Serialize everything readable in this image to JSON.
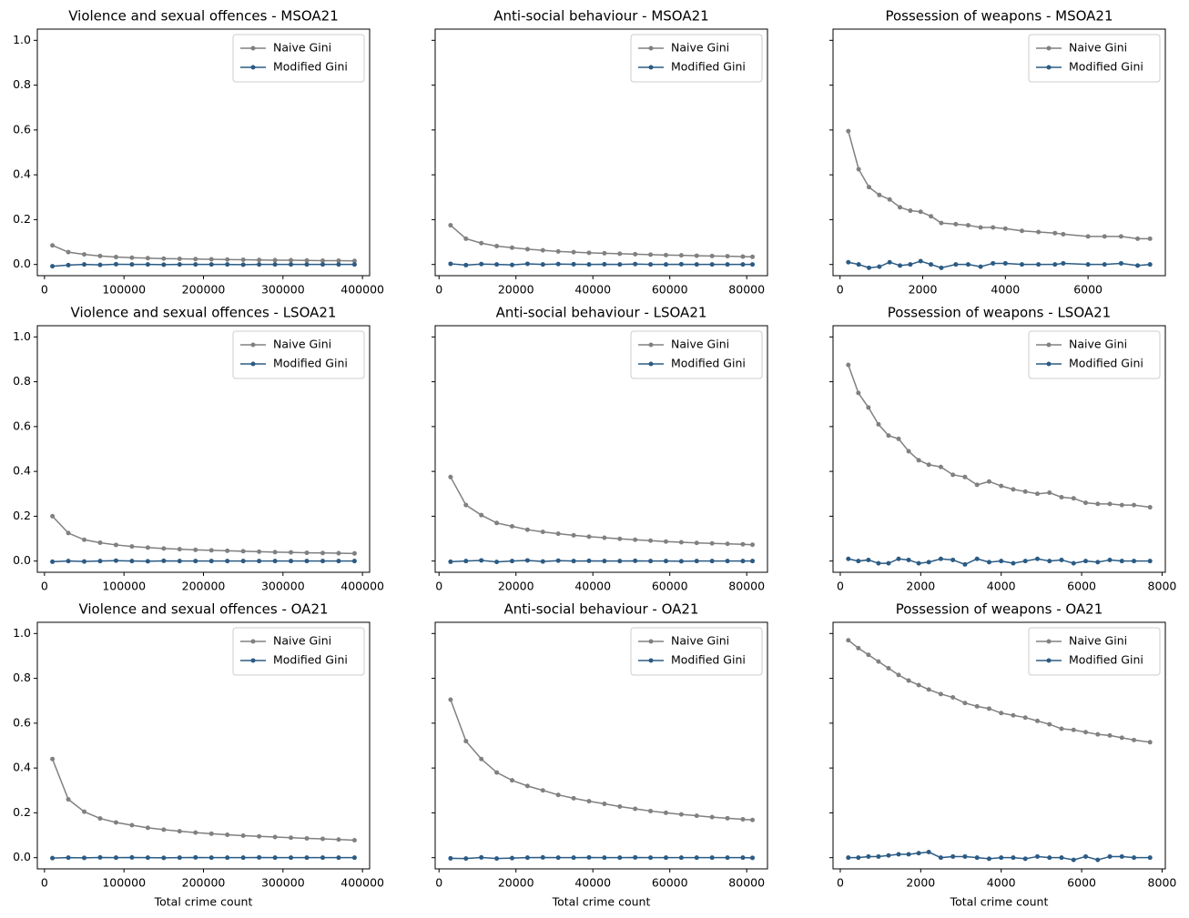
{
  "chart_data": [
    {
      "type": "line",
      "title": "Violence and sexual offences - MSOA21",
      "legend": "upper right",
      "x": [
        10000,
        30000,
        50000,
        70000,
        90000,
        110000,
        130000,
        150000,
        170000,
        190000,
        210000,
        230000,
        250000,
        270000,
        290000,
        310000,
        330000,
        350000,
        370000,
        390000
      ],
      "series": [
        {
          "name": "Naive Gini",
          "color": "#808080",
          "values": [
            0.085,
            0.055,
            0.045,
            0.038,
            0.033,
            0.03,
            0.028,
            0.026,
            0.025,
            0.024,
            0.023,
            0.022,
            0.021,
            0.02,
            0.019,
            0.019,
            0.018,
            0.017,
            0.017,
            0.016
          ]
        },
        {
          "name": "Modified Gini",
          "color": "#2b5b84",
          "values": [
            -0.008,
            -0.003,
            0,
            -0.002,
            0.001,
            0,
            0,
            -0.001,
            0,
            0,
            0,
            0,
            -0.001,
            0,
            0,
            0,
            0,
            0,
            0,
            0
          ]
        }
      ],
      "xlim": [
        -9000,
        409000
      ],
      "xticks": [
        0,
        100000,
        200000,
        300000,
        400000
      ],
      "ylim": [
        -0.05,
        1.05
      ],
      "yticks": [
        {
          "value": 0,
          "label": "0.0"
        },
        0.2,
        0.4,
        0.6,
        0.8,
        {
          "value": 1,
          "label": "1.0"
        }
      ]
    },
    {
      "type": "line",
      "title": "Anti-social behaviour - MSOA21",
      "legend": "upper right",
      "x": [
        3000,
        7000,
        11000,
        15000,
        19000,
        23000,
        27000,
        31000,
        35000,
        39000,
        43000,
        47000,
        51000,
        55000,
        59000,
        63000,
        67000,
        71000,
        75000,
        79000,
        81500
      ],
      "series": [
        {
          "name": "Naive Gini",
          "color": "#808080",
          "values": [
            0.175,
            0.115,
            0.095,
            0.082,
            0.075,
            0.068,
            0.063,
            0.058,
            0.055,
            0.052,
            0.05,
            0.048,
            0.046,
            0.044,
            0.042,
            0.041,
            0.039,
            0.038,
            0.037,
            0.035,
            0.034
          ]
        },
        {
          "name": "Modified Gini",
          "color": "#2b5b84",
          "values": [
            0.003,
            -0.003,
            0.002,
            0,
            -0.002,
            0.003,
            0,
            0.002,
            0.001,
            0,
            0.001,
            0,
            0.002,
            0,
            0,
            0.001,
            0,
            0,
            0,
            0,
            0
          ]
        }
      ],
      "xlim": [
        -1000,
        85400
      ],
      "xticks": [
        0,
        20000,
        40000,
        60000,
        80000
      ],
      "ylim": [
        -0.05,
        1.05
      ],
      "yticks": [
        0,
        0.2,
        0.4,
        0.6,
        0.8,
        1
      ]
    },
    {
      "type": "line",
      "title": "Possession of weapons - MSOA21",
      "legend": "upper right",
      "x": [
        200,
        450,
        700,
        950,
        1200,
        1450,
        1700,
        1950,
        2200,
        2450,
        2800,
        3100,
        3400,
        3700,
        4000,
        4400,
        4800,
        5200,
        5400,
        6000,
        6400,
        6800,
        7200,
        7500
      ],
      "series": [
        {
          "name": "Naive Gini",
          "color": "#808080",
          "values": [
            0.595,
            0.425,
            0.345,
            0.31,
            0.29,
            0.255,
            0.24,
            0.235,
            0.215,
            0.185,
            0.18,
            0.175,
            0.165,
            0.165,
            0.16,
            0.15,
            0.145,
            0.14,
            0.135,
            0.125,
            0.125,
            0.125,
            0.115,
            0.115
          ]
        },
        {
          "name": "Modified Gini",
          "color": "#2b5b84",
          "values": [
            0.01,
            0,
            -0.015,
            -0.01,
            0.01,
            -0.005,
            0,
            0.015,
            0,
            -0.015,
            0,
            0,
            -0.01,
            0.005,
            0.005,
            0,
            0,
            0,
            0.005,
            0,
            0,
            0.005,
            -0.005,
            0
          ]
        }
      ],
      "xlim": [
        -170,
        7870
      ],
      "xticks": [
        0,
        2000,
        4000,
        6000
      ],
      "ylim": [
        -0.05,
        1.05
      ],
      "yticks": [
        0,
        0.2,
        0.4,
        0.6,
        0.8,
        1
      ]
    },
    {
      "type": "line",
      "title": "Violence and sexual offences - LSOA21",
      "legend": "upper right",
      "x": [
        10000,
        30000,
        50000,
        70000,
        90000,
        110000,
        130000,
        150000,
        170000,
        190000,
        210000,
        230000,
        250000,
        270000,
        290000,
        310000,
        330000,
        350000,
        370000,
        390000
      ],
      "series": [
        {
          "name": "Naive Gini",
          "color": "#808080",
          "values": [
            0.2,
            0.125,
            0.095,
            0.082,
            0.072,
            0.065,
            0.06,
            0.056,
            0.053,
            0.05,
            0.048,
            0.046,
            0.044,
            0.042,
            0.04,
            0.039,
            0.037,
            0.036,
            0.035,
            0.034
          ]
        },
        {
          "name": "Modified Gini",
          "color": "#2b5b84",
          "values": [
            -0.003,
            0,
            -0.002,
            0,
            0.002,
            0,
            -0.001,
            0.001,
            0,
            0,
            0,
            0,
            0,
            0,
            0,
            0,
            0,
            0,
            0,
            0
          ]
        }
      ],
      "xlim": [
        -9000,
        409000
      ],
      "xticks": [
        0,
        100000,
        200000,
        300000,
        400000
      ],
      "ylim": [
        -0.05,
        1.05
      ],
      "yticks": [
        {
          "value": 0,
          "label": "0.0"
        },
        0.2,
        0.4,
        0.6,
        0.8,
        {
          "value": 1,
          "label": "1.0"
        }
      ]
    },
    {
      "type": "line",
      "title": "Anti-social behaviour - LSOA21",
      "legend": "upper right",
      "x": [
        3000,
        7000,
        11000,
        15000,
        19000,
        23000,
        27000,
        31000,
        35000,
        39000,
        43000,
        47000,
        51000,
        55000,
        59000,
        63000,
        67000,
        71000,
        75000,
        79000,
        81500
      ],
      "series": [
        {
          "name": "Naive Gini",
          "color": "#808080",
          "values": [
            0.375,
            0.25,
            0.205,
            0.17,
            0.155,
            0.14,
            0.13,
            0.122,
            0.115,
            0.109,
            0.104,
            0.099,
            0.095,
            0.091,
            0.087,
            0.084,
            0.081,
            0.079,
            0.077,
            0.075,
            0.073
          ]
        },
        {
          "name": "Modified Gini",
          "color": "#2b5b84",
          "values": [
            -0.003,
            0,
            0.003,
            -0.004,
            0,
            0.003,
            -0.002,
            0.002,
            0,
            0.001,
            0,
            0,
            0.001,
            0,
            0,
            -0.001,
            0,
            0,
            0,
            0,
            0
          ]
        }
      ],
      "xlim": [
        -1000,
        85400
      ],
      "xticks": [
        0,
        20000,
        40000,
        60000,
        80000
      ],
      "ylim": [
        -0.05,
        1.05
      ],
      "yticks": [
        0,
        0.2,
        0.4,
        0.6,
        0.8,
        1
      ]
    },
    {
      "type": "line",
      "title": "Possession of weapons - LSOA21",
      "legend": "upper right",
      "x": [
        200,
        450,
        700,
        950,
        1200,
        1450,
        1700,
        1950,
        2200,
        2500,
        2800,
        3100,
        3400,
        3700,
        4000,
        4300,
        4600,
        4900,
        5200,
        5500,
        5800,
        6100,
        6400,
        6700,
        7000,
        7300,
        7700
      ],
      "series": [
        {
          "name": "Naive Gini",
          "color": "#808080",
          "values": [
            0.875,
            0.75,
            0.685,
            0.61,
            0.56,
            0.545,
            0.49,
            0.45,
            0.43,
            0.42,
            0.385,
            0.375,
            0.34,
            0.355,
            0.335,
            0.32,
            0.31,
            0.3,
            0.305,
            0.285,
            0.28,
            0.26,
            0.255,
            0.255,
            0.25,
            0.25,
            0.24
          ]
        },
        {
          "name": "Modified Gini",
          "color": "#2b5b84",
          "values": [
            0.01,
            0,
            0.005,
            -0.01,
            -0.01,
            0.01,
            0.005,
            -0.01,
            -0.005,
            0.01,
            0.005,
            -0.015,
            0.01,
            -0.005,
            0,
            -0.01,
            0,
            0.01,
            0,
            0.005,
            -0.01,
            0,
            -0.005,
            0.005,
            0,
            0,
            0
          ]
        }
      ],
      "xlim": [
        -180,
        8080
      ],
      "xticks": [
        0,
        2000,
        4000,
        6000,
        8000
      ],
      "ylim": [
        -0.05,
        1.05
      ],
      "yticks": [
        0,
        0.2,
        0.4,
        0.6,
        0.8,
        1
      ]
    },
    {
      "type": "line",
      "title": "Violence and sexual offences - OA21",
      "legend": "upper right",
      "xlabel": "Total crime count",
      "x": [
        10000,
        30000,
        50000,
        70000,
        90000,
        110000,
        130000,
        150000,
        170000,
        190000,
        210000,
        230000,
        250000,
        270000,
        290000,
        310000,
        330000,
        350000,
        370000,
        390000
      ],
      "series": [
        {
          "name": "Naive Gini",
          "color": "#808080",
          "values": [
            0.44,
            0.26,
            0.205,
            0.175,
            0.157,
            0.145,
            0.133,
            0.125,
            0.118,
            0.112,
            0.107,
            0.102,
            0.098,
            0.095,
            0.092,
            0.089,
            0.086,
            0.084,
            0.081,
            0.078
          ]
        },
        {
          "name": "Modified Gini",
          "color": "#2b5b84",
          "values": [
            -0.002,
            0,
            -0.001,
            0.001,
            0,
            0.001,
            0,
            -0.001,
            0,
            0.001,
            0,
            0,
            0,
            0.001,
            0,
            0,
            0,
            0,
            0,
            0
          ]
        }
      ],
      "xlim": [
        -9000,
        409000
      ],
      "xticks": [
        0,
        100000,
        200000,
        300000,
        400000
      ],
      "ylim": [
        -0.05,
        1.05
      ],
      "yticks": [
        {
          "value": 0,
          "label": "0.0"
        },
        0.2,
        0.4,
        0.6,
        0.8,
        {
          "value": 1,
          "label": "1.0"
        }
      ]
    },
    {
      "type": "line",
      "title": "Anti-social behaviour - OA21",
      "legend": "upper right",
      "xlabel": "Total crime count",
      "x": [
        3000,
        7000,
        11000,
        15000,
        19000,
        23000,
        27000,
        31000,
        35000,
        39000,
        43000,
        47000,
        51000,
        55000,
        59000,
        63000,
        67000,
        71000,
        75000,
        79000,
        81500
      ],
      "series": [
        {
          "name": "Naive Gini",
          "color": "#808080",
          "values": [
            0.705,
            0.52,
            0.44,
            0.38,
            0.345,
            0.32,
            0.3,
            0.28,
            0.265,
            0.252,
            0.24,
            0.228,
            0.218,
            0.208,
            0.2,
            0.193,
            0.187,
            0.181,
            0.176,
            0.171,
            0.168
          ]
        },
        {
          "name": "Modified Gini",
          "color": "#2b5b84",
          "values": [
            -0.003,
            -0.004,
            0.001,
            -0.004,
            -0.002,
            0,
            0.001,
            0,
            0,
            0.001,
            0,
            0,
            0.001,
            0,
            0,
            0,
            0,
            0,
            0,
            0,
            -0.001
          ]
        }
      ],
      "xlim": [
        -1000,
        85400
      ],
      "xticks": [
        0,
        20000,
        40000,
        60000,
        80000
      ],
      "ylim": [
        -0.05,
        1.05
      ],
      "yticks": [
        0,
        0.2,
        0.4,
        0.6,
        0.8,
        1
      ]
    },
    {
      "type": "line",
      "title": "Possession of weapons - OA21",
      "legend": "upper right",
      "xlabel": "Total crime count",
      "x": [
        200,
        450,
        700,
        950,
        1200,
        1450,
        1700,
        1950,
        2200,
        2500,
        2800,
        3100,
        3400,
        3700,
        4000,
        4300,
        4600,
        4900,
        5200,
        5500,
        5800,
        6100,
        6400,
        6700,
        7000,
        7300,
        7700
      ],
      "series": [
        {
          "name": "Naive Gini",
          "color": "#808080",
          "values": [
            0.97,
            0.935,
            0.905,
            0.875,
            0.845,
            0.815,
            0.79,
            0.77,
            0.75,
            0.73,
            0.715,
            0.69,
            0.675,
            0.665,
            0.645,
            0.635,
            0.625,
            0.61,
            0.595,
            0.575,
            0.57,
            0.56,
            0.55,
            0.545,
            0.535,
            0.525,
            0.515
          ]
        },
        {
          "name": "Modified Gini",
          "color": "#2b5b84",
          "values": [
            0,
            0,
            0.005,
            0.005,
            0.01,
            0.015,
            0.015,
            0.02,
            0.025,
            0,
            0.005,
            0.005,
            0,
            -0.005,
            0,
            0,
            -0.005,
            0.005,
            0,
            0,
            -0.01,
            0.005,
            -0.01,
            0.005,
            0.005,
            0,
            0
          ]
        }
      ],
      "xlim": [
        -180,
        8080
      ],
      "xticks": [
        0,
        2000,
        4000,
        6000,
        8000
      ],
      "ylim": [
        -0.05,
        1.05
      ],
      "yticks": [
        0,
        0.2,
        0.4,
        0.6,
        0.8,
        1
      ]
    }
  ]
}
